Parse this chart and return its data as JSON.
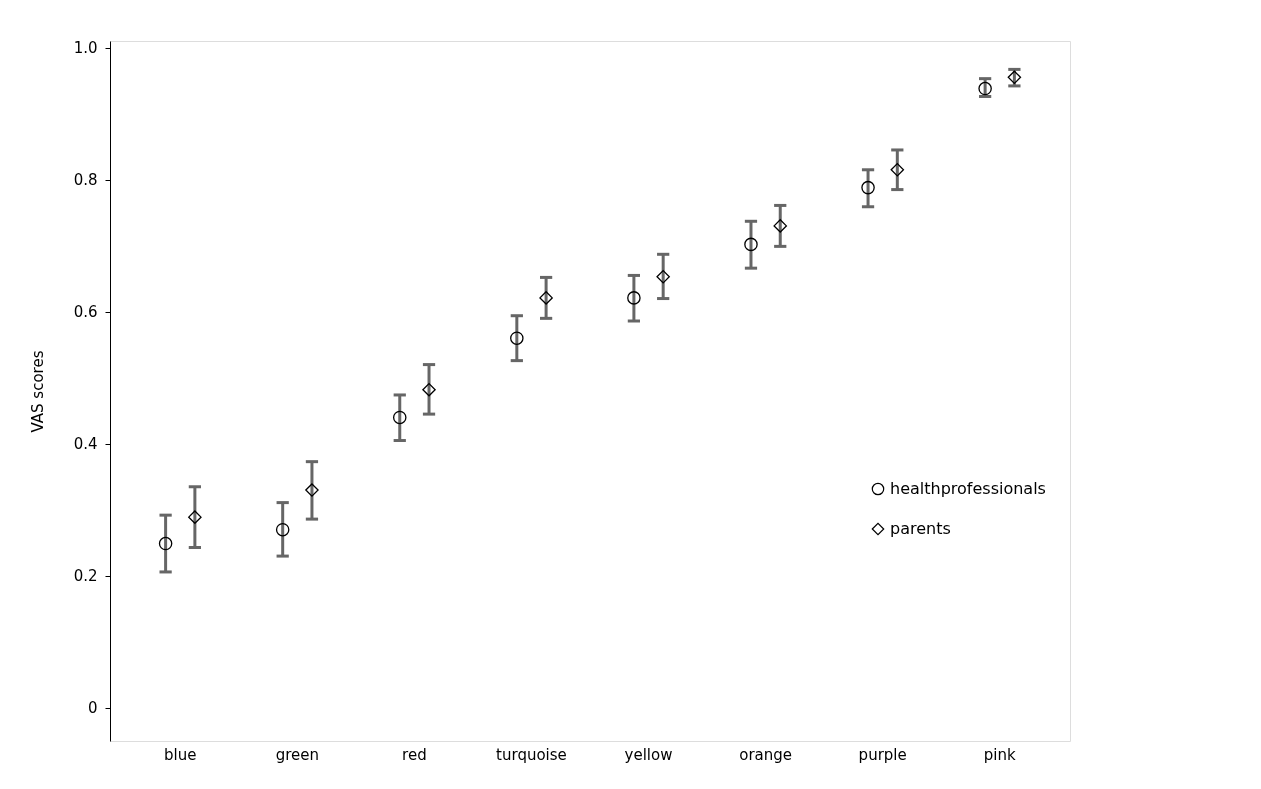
{
  "chart_data": {
    "type": "scatter",
    "ylabel": "VAS scores",
    "categories": [
      "blue",
      "green",
      "red",
      "turquoise",
      "yellow",
      "orange",
      "purple",
      "pink"
    ],
    "series": [
      {
        "name": "healthprofessionals",
        "color": "#000000",
        "marker": "circle",
        "values": [
          0.249,
          0.27,
          0.44,
          0.56,
          0.621,
          0.702,
          0.788,
          0.938
        ],
        "errors": [
          [
            0.206,
            0.292
          ],
          [
            0.23,
            0.311
          ],
          [
            0.405,
            0.474
          ],
          [
            0.526,
            0.594
          ],
          [
            0.586,
            0.655
          ],
          [
            0.666,
            0.737
          ],
          [
            0.759,
            0.815
          ],
          [
            0.926,
            0.953
          ]
        ]
      },
      {
        "name": "parents",
        "color": "#000000",
        "marker": "diamond",
        "values": [
          0.289,
          0.33,
          0.482,
          0.621,
          0.653,
          0.73,
          0.815,
          0.955
        ],
        "errors": [
          [
            0.243,
            0.335
          ],
          [
            0.286,
            0.373
          ],
          [
            0.445,
            0.52
          ],
          [
            0.59,
            0.652
          ],
          [
            0.62,
            0.687
          ],
          [
            0.699,
            0.761
          ],
          [
            0.785,
            0.845
          ],
          [
            0.942,
            0.967
          ]
        ]
      }
    ],
    "ylim": [
      -0.05,
      1.01
    ],
    "yticks": [
      0,
      0.2,
      0.4,
      0.6,
      0.8,
      {
        "value": 1,
        "label": "1.0"
      }
    ],
    "grid": false,
    "legend": "right"
  }
}
